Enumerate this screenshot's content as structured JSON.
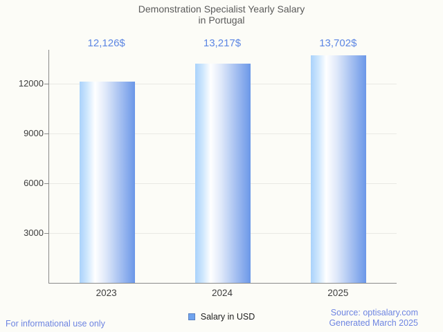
{
  "header": {
    "title_line1": "Demonstration Specialist Yearly Salary",
    "title_line2": "in Portugal"
  },
  "chart_data": {
    "type": "bar",
    "title": "Demonstration Specialist Yearly Salary in Portugal",
    "categories": [
      "2023",
      "2024",
      "2025"
    ],
    "series": [
      {
        "name": "Salary in USD",
        "values": [
          12126,
          13217,
          13702
        ]
      }
    ],
    "value_labels": [
      "12,126$",
      "13,217$",
      "13,702$"
    ],
    "yticks": [
      3000,
      6000,
      9000,
      12000
    ],
    "ylim": [
      0,
      14042
    ],
    "xlabel": "",
    "ylabel": "",
    "grid": "horizontal",
    "legend_position": "bottom-center",
    "bar_gradient": [
      "#a9d2fb",
      "#ffffff",
      "#6b97e8"
    ]
  },
  "legend": {
    "label": "Salary in USD",
    "marker_color": "#6fa3ee"
  },
  "footer": {
    "left_note": "For informational use only",
    "source_line1": "Source: optisalary.com",
    "source_line2": "Generated March 2025"
  },
  "colors": {
    "background": "#fcfcf7",
    "title_text": "#5a5a5a",
    "value_label_text": "#5c86e3",
    "axis_line": "#898989",
    "grid_line": "#e9e9e4",
    "tick_label_text": "#3d3d3d",
    "footer_text": "#6d84e1"
  }
}
